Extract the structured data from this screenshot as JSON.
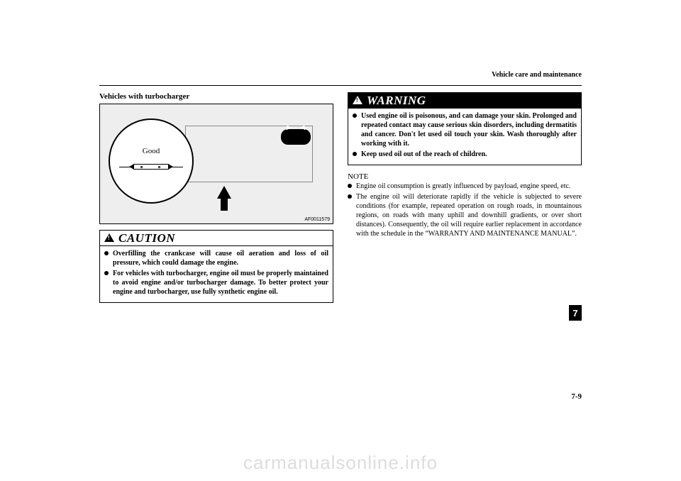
{
  "header": {
    "section": "Vehicle care and maintenance"
  },
  "left": {
    "subhead": "Vehicles with turbocharger",
    "figure": {
      "balloon_label": "Good",
      "id": "AF0011579"
    },
    "caution": {
      "title": "CAUTION",
      "items": [
        "Overfilling the crankcase will cause oil aeration and loss of oil pressure, which could damage the engine.",
        "For vehicles with turbocharger, engine oil must be properly maintained to avoid engine and/or turbocharger damage. To better protect your engine and turbocharger, use fully synthetic engine oil."
      ]
    }
  },
  "right": {
    "warning": {
      "title": "WARNING",
      "items": [
        "Used engine oil is poisonous, and can damage your skin. Prolonged and repeated contact may cause serious skin disorders, including dermatitis and cancer. Don't let used oil touch your skin. Wash thoroughly after working with it.",
        "Keep used oil out of the reach of children."
      ]
    },
    "note": {
      "heading": "NOTE",
      "items": [
        "Engine oil consumption is greatly influenced by payload, engine speed, etc.",
        "The engine oil will deteriorate rapidly if the vehicle is subjected to severe conditions (for example, repeated operation on rough roads, in mountainous regions, on roads with many uphill and downhill gradients, or over short distances). Consequently, the oil will require earlier replacement in accordance with the schedule in the “WARRANTY AND MAINTENANCE MANUAL”."
      ]
    }
  },
  "page": {
    "tab": "7",
    "number": "7-9"
  },
  "watermark": "carmanualsonline.info"
}
